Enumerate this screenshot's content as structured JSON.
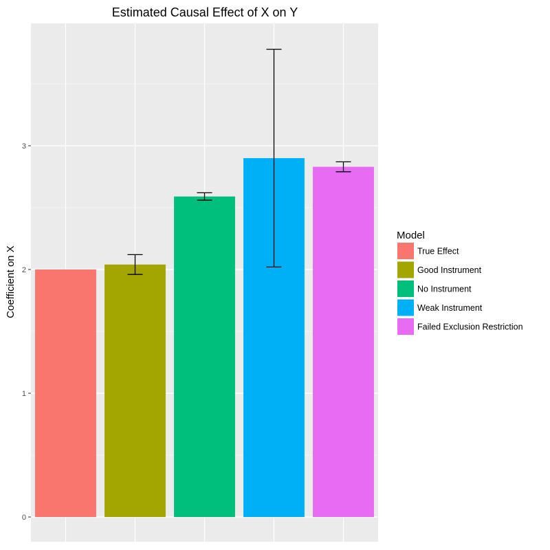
{
  "chart_data": {
    "type": "bar",
    "title": "Estimated Causal Effect of X on Y",
    "xlabel": "",
    "ylabel": "Coefficient on X",
    "ylim": [
      0,
      3.9
    ],
    "yticks": [
      0,
      1,
      2,
      3
    ],
    "grid": true,
    "legend": {
      "title": "Model",
      "placement": "right"
    },
    "categories": [
      "True Effect",
      "Good Instrument",
      "No Instrument",
      "Weak Instrument",
      "Failed Exclusion Restriction"
    ],
    "values": [
      2.0,
      2.04,
      2.59,
      2.9,
      2.83
    ],
    "error_low": [
      null,
      1.96,
      2.56,
      2.02,
      2.79
    ],
    "error_high": [
      null,
      2.12,
      2.62,
      3.78,
      2.87
    ],
    "colors": [
      "#F8766D",
      "#A3A500",
      "#00BF7D",
      "#00B0F6",
      "#E76BF3"
    ]
  }
}
